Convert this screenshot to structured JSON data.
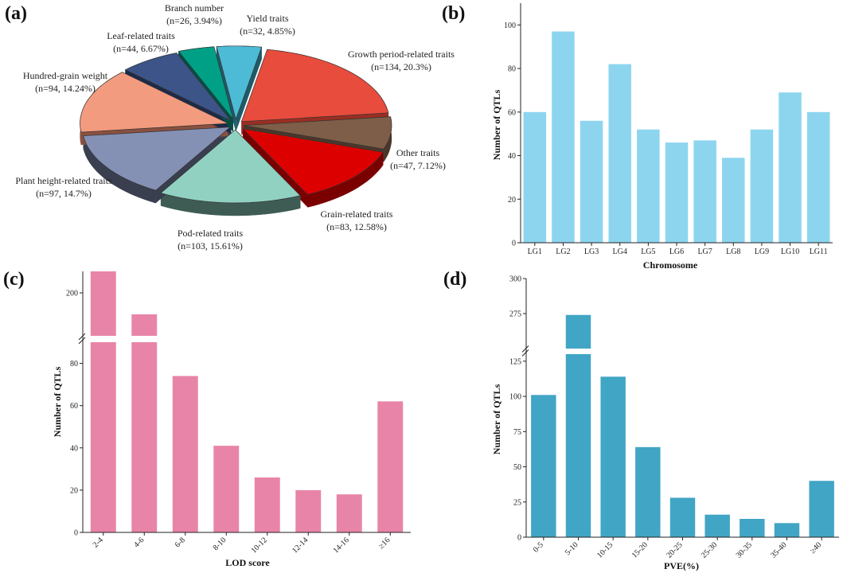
{
  "chart_data": [
    {
      "type": "pie",
      "panel_label": "(a)",
      "slices": [
        {
          "name": "Growth period-related traits",
          "detail": "(n=134, 20.3%)",
          "value": 134,
          "percent": 20.3,
          "color": "#E74C3C",
          "side": "#9A2E22"
        },
        {
          "name": "Other traits",
          "detail": "(n=47, 7.12%)",
          "value": 47,
          "percent": 7.12,
          "color": "#7E5E48",
          "side": "#4A372A"
        },
        {
          "name": "Grain-related traits",
          "detail": "(n=83, 12.58%)",
          "value": 83,
          "percent": 12.58,
          "color": "#DD0000",
          "side": "#7A0000"
        },
        {
          "name": "Pod-related traits",
          "detail": "(n=103, 15.61%)",
          "value": 103,
          "percent": 15.61,
          "color": "#91D1C2",
          "side": "#3F5C54"
        },
        {
          "name": "Plant height-related traits",
          "detail": "(n=97, 14.7%)",
          "value": 97,
          "percent": 14.7,
          "color": "#8491B4",
          "side": "#3A3F50"
        },
        {
          "name": "Hundred-grain weight",
          "detail": "(n=94, 14.24%)",
          "value": 94,
          "percent": 14.24,
          "color": "#F39B7F",
          "side": "#8A5040"
        },
        {
          "name": "Leaf-related traits",
          "detail": "(n=44, 6.67%)",
          "value": 44,
          "percent": 6.67,
          "color": "#3C5488",
          "side": "#1E2A48"
        },
        {
          "name": "Branch number",
          "detail": "(n=26, 3.94%)",
          "value": 26,
          "percent": 3.94,
          "color": "#00A087",
          "side": "#005044"
        },
        {
          "name": "Yield traits",
          "detail": "(n=32, 4.85%)",
          "value": 32,
          "percent": 4.85,
          "color": "#4DBBD5",
          "side": "#1E5A68"
        }
      ]
    },
    {
      "type": "bar",
      "panel_label": "(b)",
      "categories": [
        "LG1",
        "LG2",
        "LG3",
        "LG4",
        "LG5",
        "LG6",
        "LG7",
        "LG8",
        "LG9",
        "LG10",
        "LG11"
      ],
      "values": [
        60,
        97,
        56,
        82,
        52,
        46,
        47,
        39,
        52,
        69,
        60
      ],
      "xlabel": "Chromosome",
      "ylabel": "Number of QTLs",
      "ylim": [
        0,
        110
      ],
      "yticks": [
        "0",
        "20",
        "40",
        "60",
        "80",
        "100"
      ],
      "color": "#8DD5EF"
    },
    {
      "type": "bar",
      "panel_label": "(c)",
      "categories": [
        "2-4",
        "4-6",
        "6-8",
        "8-10",
        "10-12",
        "12-14",
        "14-16",
        "≥16"
      ],
      "values": [
        210,
        190,
        74,
        41,
        26,
        20,
        18,
        62
      ],
      "xlabel": "LOD score",
      "ylabel": "Number of QTLs",
      "axis_break": true,
      "yticks_lower": [
        "0",
        "20",
        "40",
        "60",
        "80"
      ],
      "yticks_upper": [
        "200"
      ],
      "color": "#E884A8"
    },
    {
      "type": "bar",
      "panel_label": "(d)",
      "categories": [
        "0-5",
        "5-10",
        "10-15",
        "15-20",
        "20-25",
        "25-30",
        "30-35",
        "35-40",
        "≥40"
      ],
      "values": [
        101,
        274,
        114,
        64,
        28,
        16,
        13,
        10,
        40
      ],
      "xlabel": "PVE(%)",
      "ylabel": "Number of QTLs",
      "axis_break": true,
      "yticks_lower": [
        "0",
        "25",
        "50",
        "75",
        "100",
        "125"
      ],
      "yticks_upper": [
        "275",
        "300"
      ],
      "color": "#41A5C5"
    }
  ]
}
